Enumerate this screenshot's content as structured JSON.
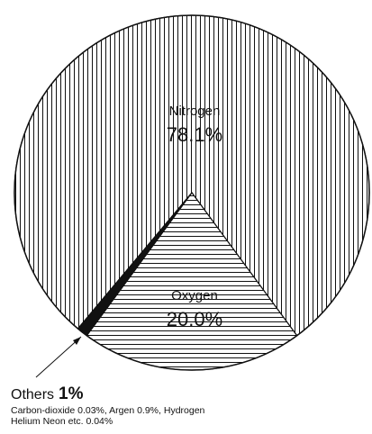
{
  "chart_data": {
    "type": "pie",
    "slices": [
      {
        "label": "Nitrogen",
        "display_value": "78.1%",
        "value": 78.1,
        "pattern": "vertical-lines"
      },
      {
        "label": "Oxygen",
        "display_value": "20.0%",
        "value": 20.0,
        "pattern": "horizontal-lines"
      },
      {
        "label": "Others",
        "display_value": "1%",
        "value": 1.0,
        "pattern": "solid-black"
      }
    ],
    "callout": {
      "label": "Others",
      "value": "1%",
      "note": "Carbon-dioxide 0.03%, Argen 0.9%, Hydrogen Helium Neon etc. 0.04%"
    },
    "colors": {
      "stroke": "#111111",
      "fill": "#ffffff",
      "others": "#111111"
    }
  }
}
